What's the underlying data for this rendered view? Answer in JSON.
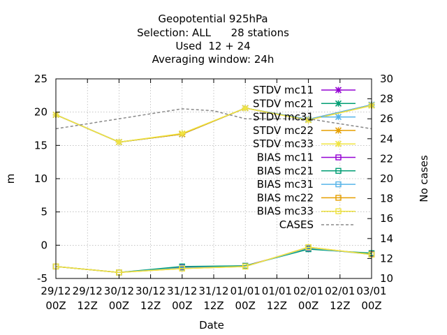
{
  "chart_data": {
    "type": "line",
    "title_lines": [
      "Geopotential 925hPa",
      "Selection: ALL      28 stations",
      "Used  12 + 24",
      "Averaging window: 24h"
    ],
    "xlabel": "Date",
    "ylabel": "m",
    "y2label": "No cases",
    "ylim": [
      -5,
      25
    ],
    "yticks": [
      -5,
      0,
      5,
      10,
      15,
      20,
      25
    ],
    "y2lim": [
      10,
      30
    ],
    "y2ticks": [
      10,
      12,
      14,
      16,
      18,
      20,
      22,
      24,
      26,
      28,
      30
    ],
    "xlim": [
      0,
      10
    ],
    "x_tick_labels": [
      [
        "29/12",
        "00Z"
      ],
      [
        "29/12",
        "12Z"
      ],
      [
        "30/12",
        "00Z"
      ],
      [
        "30/12",
        "12Z"
      ],
      [
        "31/12",
        "00Z"
      ],
      [
        "31/12",
        "12Z"
      ],
      [
        "01/01",
        "00Z"
      ],
      [
        "01/01",
        "12Z"
      ],
      [
        "02/01",
        "00Z"
      ],
      [
        "02/01",
        "12Z"
      ],
      [
        "03/01",
        "00Z"
      ]
    ],
    "grid": true,
    "legend_position": "top-right",
    "series": [
      {
        "name": "STDV mc11",
        "color": "#9400d3",
        "marker": "x",
        "dash": false,
        "axis": "y",
        "x": [
          0,
          2,
          4,
          6,
          8,
          10
        ],
        "values": [
          19.6,
          15.5,
          16.7,
          20.6,
          18.9,
          21.1
        ]
      },
      {
        "name": "STDV mc21",
        "color": "#009e73",
        "marker": "x",
        "dash": false,
        "axis": "y",
        "x": [
          0,
          2,
          4,
          6,
          8,
          10
        ],
        "values": [
          19.6,
          15.5,
          16.7,
          20.6,
          18.9,
          21.1
        ]
      },
      {
        "name": "STDV mc31",
        "color": "#56b4e9",
        "marker": "x",
        "dash": false,
        "axis": "y",
        "x": [
          0,
          2,
          4,
          6,
          8,
          10
        ],
        "values": [
          19.6,
          15.5,
          16.7,
          20.6,
          18.9,
          21.1
        ]
      },
      {
        "name": "STDV mc22",
        "color": "#e69f00",
        "marker": "x",
        "dash": false,
        "axis": "y",
        "x": [
          0,
          2,
          4,
          6,
          8,
          10
        ],
        "values": [
          19.6,
          15.5,
          16.7,
          20.6,
          18.8,
          21.0
        ]
      },
      {
        "name": "STDV mc33",
        "color": "#f0e442",
        "marker": "x",
        "dash": false,
        "axis": "y",
        "x": [
          0,
          2,
          4,
          6,
          8,
          10
        ],
        "values": [
          19.6,
          15.5,
          16.8,
          20.6,
          18.8,
          21.0
        ]
      },
      {
        "name": "BIAS mc11",
        "color": "#9400d3",
        "marker": "square",
        "dash": false,
        "axis": "y",
        "x": [
          0,
          2,
          4,
          6,
          8,
          10
        ],
        "values": [
          -3.2,
          -4.1,
          -3.3,
          -3.1,
          -0.5,
          -1.3
        ]
      },
      {
        "name": "BIAS mc21",
        "color": "#009e73",
        "marker": "square",
        "dash": false,
        "axis": "y",
        "x": [
          0,
          2,
          4,
          6,
          8,
          10
        ],
        "values": [
          -3.2,
          -4.1,
          -3.2,
          -3.1,
          -0.6,
          -1.2
        ]
      },
      {
        "name": "BIAS mc31",
        "color": "#56b4e9",
        "marker": "square",
        "dash": false,
        "axis": "y",
        "x": [
          0,
          2,
          4,
          6,
          8,
          10
        ],
        "values": [
          -3.2,
          -4.1,
          -3.4,
          -3.2,
          -0.4,
          -1.4
        ]
      },
      {
        "name": "BIAS mc22",
        "color": "#e69f00",
        "marker": "square",
        "dash": false,
        "axis": "y",
        "x": [
          0,
          2,
          4,
          6,
          8,
          10
        ],
        "values": [
          -3.2,
          -4.1,
          -3.5,
          -3.2,
          -0.3,
          -1.4
        ]
      },
      {
        "name": "BIAS mc33",
        "color": "#f0e442",
        "marker": "square",
        "dash": false,
        "axis": "y",
        "x": [
          0,
          2,
          4,
          6,
          8,
          10
        ],
        "values": [
          -3.2,
          -4.1,
          -3.5,
          -3.2,
          -0.3,
          -1.4
        ]
      },
      {
        "name": "CASES",
        "color": "#888888",
        "marker": "none",
        "dash": true,
        "axis": "y2",
        "x": [
          0,
          1,
          2,
          3,
          4,
          5,
          6,
          7,
          8,
          9,
          10
        ],
        "values": [
          25,
          25.5,
          26,
          26.5,
          27,
          26.8,
          26,
          26,
          26,
          25.5,
          25
        ]
      }
    ]
  }
}
